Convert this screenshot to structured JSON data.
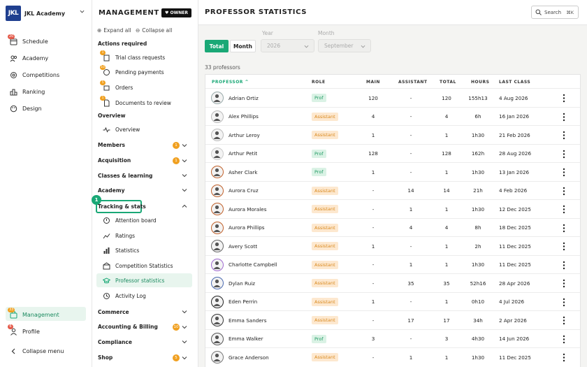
{
  "org": {
    "logo_text": "JKL",
    "name": "JKL Academy"
  },
  "left_nav": {
    "items": [
      {
        "label": "Schedule",
        "icon": "calendar-icon",
        "badge": "20"
      },
      {
        "label": "Academy",
        "icon": "users-icon",
        "badge": ""
      },
      {
        "label": "Competitions",
        "icon": "trophy-icon",
        "badge": ""
      },
      {
        "label": "Ranking",
        "icon": "ranking-icon",
        "badge": ""
      },
      {
        "label": "Design",
        "icon": "palette-icon",
        "badge": ""
      }
    ],
    "bottom": [
      {
        "label": "Management",
        "icon": "management-icon",
        "badge": "33"
      },
      {
        "label": "Profile",
        "icon": "profile-icon",
        "badge": "6"
      },
      {
        "label": "Collapse menu",
        "icon": "chevron-left-icon",
        "badge": ""
      }
    ]
  },
  "management": {
    "title": "MANAGEMENT",
    "owner_badge": "OWNER",
    "expand_all": "Expand all",
    "collapse_all": "Collapse all",
    "actions_required": "Actions required",
    "actions": [
      {
        "label": "Trial class requests",
        "badge": "1"
      },
      {
        "label": "Pending payments",
        "badge": "10"
      },
      {
        "label": "Orders",
        "badge": "5"
      },
      {
        "label": "Documents to review",
        "badge": "1"
      }
    ],
    "overview_head": "Overview",
    "overview_item": "Overview",
    "sections": [
      {
        "label": "Members",
        "badge": "1"
      },
      {
        "label": "Acquisition",
        "badge": "1"
      },
      {
        "label": "Classes & learning",
        "badge": ""
      },
      {
        "label": "Academy",
        "badge": ""
      },
      {
        "label": "Tracking & stats",
        "badge": ""
      }
    ],
    "tracking_step": "1",
    "tracking_items": [
      {
        "label": "Attention board"
      },
      {
        "label": "Ratings"
      },
      {
        "label": "Statistics"
      },
      {
        "label": "Competition Statistics"
      },
      {
        "label": "Professor statistics"
      },
      {
        "label": "Activity Log"
      }
    ],
    "bottom_sections": [
      {
        "label": "Commerce",
        "badge": ""
      },
      {
        "label": "Accounting & Billing",
        "badge": "10"
      },
      {
        "label": "Compliance",
        "badge": ""
      },
      {
        "label": "Shop",
        "badge": "5"
      }
    ]
  },
  "page": {
    "title": "PROFESSOR STATISTICS",
    "search_label": "Search",
    "search_shortcut": "⌘K",
    "toggle_total": "Total",
    "toggle_month": "Month",
    "year_label": "Year",
    "year_value": "2026",
    "month_label": "Month",
    "month_value": "September",
    "count": "33 professors"
  },
  "table": {
    "columns": [
      "PROFESSOR",
      "ROLE",
      "MAIN",
      "ASSISTANT",
      "TOTAL",
      "HOURS",
      "LAST CLASS"
    ],
    "rows": [
      {
        "name": "Adrian Ortiz",
        "role": "Prof",
        "main": "120",
        "assistant": "-",
        "total": "120",
        "hours": "155h13",
        "last": "4 Aug 2026"
      },
      {
        "name": "Alex Phillips",
        "role": "Assistant",
        "main": "4",
        "assistant": "-",
        "total": "4",
        "hours": "6h",
        "last": "16 Jan 2026"
      },
      {
        "name": "Arthur Leroy",
        "role": "Assistant",
        "main": "1",
        "assistant": "-",
        "total": "1",
        "hours": "1h30",
        "last": "21 Feb 2026"
      },
      {
        "name": "Arthur Petit",
        "role": "Prof",
        "main": "128",
        "assistant": "-",
        "total": "128",
        "hours": "162h",
        "last": "28 Aug 2026"
      },
      {
        "name": "Asher Clark",
        "role": "Prof",
        "main": "1",
        "assistant": "-",
        "total": "1",
        "hours": "1h30",
        "last": "13 Jan 2026"
      },
      {
        "name": "Aurora Cruz",
        "role": "Assistant",
        "main": "-",
        "assistant": "14",
        "total": "14",
        "hours": "21h",
        "last": "4 Feb 2026"
      },
      {
        "name": "Aurora Morales",
        "role": "Assistant",
        "main": "-",
        "assistant": "1",
        "total": "1",
        "hours": "1h30",
        "last": "12 Dec 2025"
      },
      {
        "name": "Aurora Phillips",
        "role": "Assistant",
        "main": "-",
        "assistant": "4",
        "total": "4",
        "hours": "8h",
        "last": "18 Dec 2025"
      },
      {
        "name": "Avery Scott",
        "role": "Assistant",
        "main": "1",
        "assistant": "-",
        "total": "1",
        "hours": "2h",
        "last": "11 Dec 2025"
      },
      {
        "name": "Charlotte Campbell",
        "role": "Assistant",
        "main": "-",
        "assistant": "1",
        "total": "1",
        "hours": "1h30",
        "last": "11 Dec 2025"
      },
      {
        "name": "Dylan Ruiz",
        "role": "Assistant",
        "main": "-",
        "assistant": "35",
        "total": "35",
        "hours": "52h16",
        "last": "28 Apr 2026"
      },
      {
        "name": "Eden Perrin",
        "role": "Assistant",
        "main": "1",
        "assistant": "-",
        "total": "1",
        "hours": "0h10",
        "last": "4 Jul 2026"
      },
      {
        "name": "Emma Sanders",
        "role": "Assistant",
        "main": "-",
        "assistant": "17",
        "total": "17",
        "hours": "34h",
        "last": "2 Apr 2026"
      },
      {
        "name": "Emma Walker",
        "role": "Prof",
        "main": "3",
        "assistant": "-",
        "total": "3",
        "hours": "4h30",
        "last": "14 Jun 2026"
      },
      {
        "name": "Grace Anderson",
        "role": "Assistant",
        "main": "-",
        "assistant": "1",
        "total": "1",
        "hours": "1h30",
        "last": "11 Dec 2025"
      }
    ]
  },
  "colors": {
    "accent": "#1aa876",
    "badge_orange": "#f0a020",
    "badge_red": "#e45a4a",
    "prof_bg": "#daf2e5",
    "assistant_bg": "#fde8cf"
  }
}
